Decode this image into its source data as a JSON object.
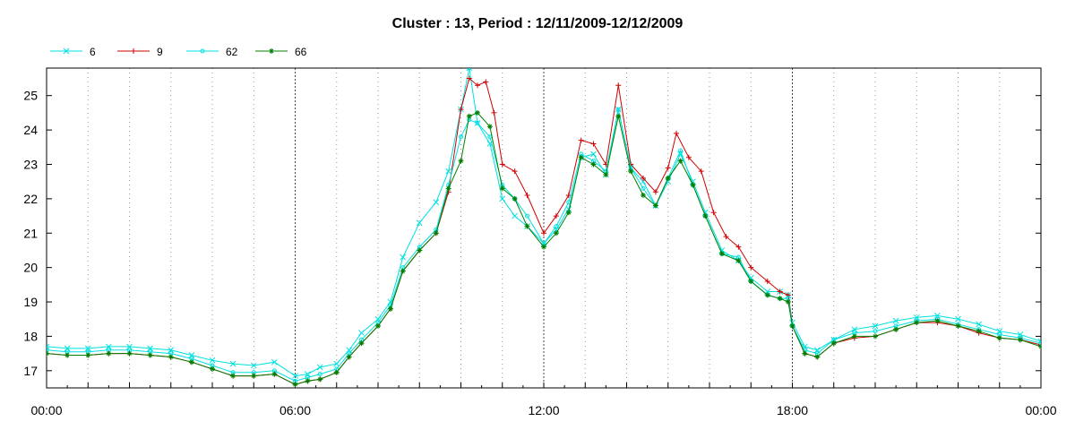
{
  "chart_data": {
    "type": "line",
    "title": "Cluster : 13, Period : 12/11/2009-12/12/2009",
    "xlabel": "",
    "ylabel": "",
    "x_unit": "hours",
    "xlim": [
      0,
      24
    ],
    "ylim": [
      16.5,
      25.8
    ],
    "x_ticks": [
      {
        "v": 0,
        "label": "00:00"
      },
      {
        "v": 6,
        "label": "06:00"
      },
      {
        "v": 12,
        "label": "12:00"
      },
      {
        "v": 18,
        "label": "18:00"
      },
      {
        "v": 24,
        "label": "00:00"
      }
    ],
    "y_ticks": [
      17,
      18,
      19,
      20,
      21,
      22,
      23,
      24,
      25
    ],
    "grid": "vertical dotted",
    "legend_position": "top-left",
    "series": [
      {
        "name": "6",
        "color": "#00e0e0",
        "marker": "x",
        "points": [
          [
            0,
            17.7
          ],
          [
            0.5,
            17.65
          ],
          [
            1,
            17.65
          ],
          [
            1.5,
            17.7
          ],
          [
            2,
            17.7
          ],
          [
            2.5,
            17.65
          ],
          [
            3,
            17.6
          ],
          [
            3.5,
            17.45
          ],
          [
            4,
            17.3
          ],
          [
            4.5,
            17.2
          ],
          [
            5,
            17.15
          ],
          [
            5.5,
            17.25
          ],
          [
            6,
            16.85
          ],
          [
            6.3,
            16.9
          ],
          [
            6.6,
            17.1
          ],
          [
            7,
            17.2
          ],
          [
            7.3,
            17.6
          ],
          [
            7.6,
            18.1
          ],
          [
            8,
            18.5
          ],
          [
            8.3,
            19.0
          ],
          [
            8.6,
            20.3
          ],
          [
            9,
            21.3
          ],
          [
            9.4,
            21.9
          ],
          [
            9.7,
            22.8
          ],
          [
            10,
            24.6
          ],
          [
            10.2,
            25.8
          ],
          [
            10.4,
            24.2
          ],
          [
            10.7,
            23.6
          ],
          [
            11,
            22.0
          ],
          [
            11.3,
            21.5
          ],
          [
            11.6,
            21.2
          ],
          [
            12,
            20.7
          ],
          [
            12.3,
            21.1
          ],
          [
            12.6,
            21.7
          ],
          [
            12.9,
            23.2
          ],
          [
            13.2,
            23.3
          ],
          [
            13.5,
            22.7
          ],
          [
            13.8,
            24.6
          ],
          [
            14.1,
            22.9
          ],
          [
            14.4,
            22.5
          ],
          [
            14.7,
            21.8
          ],
          [
            15,
            22.5
          ],
          [
            15.3,
            23.3
          ],
          [
            15.6,
            22.5
          ],
          [
            15.9,
            21.6
          ],
          [
            16.3,
            20.5
          ],
          [
            16.7,
            20.2
          ],
          [
            17,
            19.7
          ],
          [
            17.4,
            19.3
          ],
          [
            17.7,
            19.3
          ],
          [
            17.9,
            19.2
          ],
          [
            18,
            18.4
          ],
          [
            18.3,
            17.7
          ],
          [
            18.6,
            17.6
          ],
          [
            19,
            17.9
          ],
          [
            19.5,
            18.2
          ],
          [
            20,
            18.3
          ],
          [
            20.5,
            18.45
          ],
          [
            21,
            18.55
          ],
          [
            21.5,
            18.6
          ],
          [
            22,
            18.5
          ],
          [
            22.5,
            18.35
          ],
          [
            23,
            18.15
          ],
          [
            23.5,
            18.05
          ],
          [
            24,
            17.85
          ]
        ]
      },
      {
        "name": "9",
        "color": "#d00000",
        "marker": "+",
        "points": [
          [
            0,
            17.5
          ],
          [
            0.5,
            17.45
          ],
          [
            1,
            17.45
          ],
          [
            1.5,
            17.5
          ],
          [
            2,
            17.5
          ],
          [
            2.5,
            17.45
          ],
          [
            3,
            17.4
          ],
          [
            3.5,
            17.25
          ],
          [
            4,
            17.05
          ],
          [
            4.5,
            16.85
          ],
          [
            5,
            16.85
          ],
          [
            5.5,
            16.9
          ],
          [
            6,
            16.6
          ],
          [
            6.3,
            16.7
          ],
          [
            6.6,
            16.75
          ],
          [
            7,
            16.95
          ],
          [
            7.3,
            17.4
          ],
          [
            7.6,
            17.8
          ],
          [
            8,
            18.3
          ],
          [
            8.3,
            18.8
          ],
          [
            8.6,
            19.9
          ],
          [
            9,
            20.5
          ],
          [
            9.4,
            21.0
          ],
          [
            9.7,
            22.2
          ],
          [
            10,
            24.6
          ],
          [
            10.2,
            25.5
          ],
          [
            10.4,
            25.3
          ],
          [
            10.6,
            25.4
          ],
          [
            10.8,
            24.5
          ],
          [
            11,
            23.0
          ],
          [
            11.3,
            22.8
          ],
          [
            11.6,
            22.1
          ],
          [
            12,
            21.0
          ],
          [
            12.3,
            21.5
          ],
          [
            12.6,
            22.1
          ],
          [
            12.9,
            23.7
          ],
          [
            13.2,
            23.6
          ],
          [
            13.5,
            23.0
          ],
          [
            13.8,
            25.3
          ],
          [
            14.1,
            23.0
          ],
          [
            14.4,
            22.6
          ],
          [
            14.7,
            22.2
          ],
          [
            15,
            22.9
          ],
          [
            15.2,
            23.9
          ],
          [
            15.5,
            23.2
          ],
          [
            15.8,
            22.8
          ],
          [
            16.1,
            21.6
          ],
          [
            16.4,
            20.9
          ],
          [
            16.7,
            20.6
          ],
          [
            17,
            20.0
          ],
          [
            17.4,
            19.6
          ],
          [
            17.7,
            19.3
          ],
          [
            17.9,
            19.2
          ],
          [
            18,
            18.3
          ],
          [
            18.3,
            17.5
          ],
          [
            18.6,
            17.4
          ],
          [
            19,
            17.8
          ],
          [
            19.5,
            17.95
          ],
          [
            20,
            18.0
          ],
          [
            20.5,
            18.2
          ],
          [
            21,
            18.4
          ],
          [
            21.5,
            18.4
          ],
          [
            22,
            18.3
          ],
          [
            22.5,
            18.1
          ],
          [
            23,
            17.95
          ],
          [
            23.5,
            17.9
          ],
          [
            24,
            17.75
          ]
        ]
      },
      {
        "name": "62",
        "color": "#00e0e0",
        "marker": "o",
        "points": [
          [
            0,
            17.6
          ],
          [
            0.5,
            17.55
          ],
          [
            1,
            17.55
          ],
          [
            1.5,
            17.6
          ],
          [
            2,
            17.6
          ],
          [
            2.5,
            17.55
          ],
          [
            3,
            17.5
          ],
          [
            3.5,
            17.35
          ],
          [
            4,
            17.15
          ],
          [
            4.5,
            16.95
          ],
          [
            5,
            16.95
          ],
          [
            5.5,
            17.0
          ],
          [
            6,
            16.7
          ],
          [
            6.3,
            16.8
          ],
          [
            6.6,
            16.9
          ],
          [
            7,
            17.05
          ],
          [
            7.3,
            17.5
          ],
          [
            7.6,
            17.9
          ],
          [
            8,
            18.4
          ],
          [
            8.3,
            18.9
          ],
          [
            8.6,
            20.0
          ],
          [
            9,
            20.6
          ],
          [
            9.4,
            21.1
          ],
          [
            9.7,
            22.4
          ],
          [
            10,
            23.8
          ],
          [
            10.2,
            24.3
          ],
          [
            10.4,
            24.2
          ],
          [
            10.7,
            23.8
          ],
          [
            11,
            22.4
          ],
          [
            11.3,
            22.0
          ],
          [
            11.6,
            21.5
          ],
          [
            12,
            20.7
          ],
          [
            12.3,
            21.2
          ],
          [
            12.6,
            21.9
          ],
          [
            12.9,
            23.3
          ],
          [
            13.2,
            23.1
          ],
          [
            13.5,
            22.8
          ],
          [
            13.8,
            24.6
          ],
          [
            14.1,
            22.9
          ],
          [
            14.4,
            22.3
          ],
          [
            14.7,
            21.8
          ],
          [
            15,
            22.6
          ],
          [
            15.3,
            23.4
          ],
          [
            15.6,
            22.4
          ],
          [
            15.9,
            21.5
          ],
          [
            16.3,
            20.4
          ],
          [
            16.7,
            20.3
          ],
          [
            17,
            19.6
          ],
          [
            17.4,
            19.2
          ],
          [
            17.7,
            19.1
          ],
          [
            17.9,
            19.1
          ],
          [
            18,
            18.3
          ],
          [
            18.3,
            17.6
          ],
          [
            18.6,
            17.5
          ],
          [
            19,
            17.9
          ],
          [
            19.5,
            18.1
          ],
          [
            20,
            18.15
          ],
          [
            20.5,
            18.3
          ],
          [
            21,
            18.45
          ],
          [
            21.5,
            18.5
          ],
          [
            22,
            18.35
          ],
          [
            22.5,
            18.2
          ],
          [
            23,
            18.05
          ],
          [
            23.5,
            17.95
          ],
          [
            24,
            17.8
          ]
        ]
      },
      {
        "name": "66",
        "color": "#008000",
        "marker": "*",
        "points": [
          [
            0,
            17.5
          ],
          [
            0.5,
            17.45
          ],
          [
            1,
            17.45
          ],
          [
            1.5,
            17.5
          ],
          [
            2,
            17.5
          ],
          [
            2.5,
            17.45
          ],
          [
            3,
            17.4
          ],
          [
            3.5,
            17.25
          ],
          [
            4,
            17.05
          ],
          [
            4.5,
            16.85
          ],
          [
            5,
            16.85
          ],
          [
            5.5,
            16.9
          ],
          [
            6,
            16.6
          ],
          [
            6.3,
            16.7
          ],
          [
            6.6,
            16.75
          ],
          [
            7,
            16.95
          ],
          [
            7.3,
            17.4
          ],
          [
            7.6,
            17.8
          ],
          [
            8,
            18.3
          ],
          [
            8.3,
            18.8
          ],
          [
            8.6,
            19.9
          ],
          [
            9,
            20.5
          ],
          [
            9.4,
            21.0
          ],
          [
            9.7,
            22.3
          ],
          [
            10,
            23.1
          ],
          [
            10.2,
            24.4
          ],
          [
            10.4,
            24.5
          ],
          [
            10.7,
            24.1
          ],
          [
            11,
            22.3
          ],
          [
            11.3,
            22.0
          ],
          [
            11.6,
            21.2
          ],
          [
            12,
            20.6
          ],
          [
            12.3,
            21.0
          ],
          [
            12.6,
            21.6
          ],
          [
            12.9,
            23.2
          ],
          [
            13.2,
            23.0
          ],
          [
            13.5,
            22.7
          ],
          [
            13.8,
            24.4
          ],
          [
            14.1,
            22.8
          ],
          [
            14.4,
            22.1
          ],
          [
            14.7,
            21.8
          ],
          [
            15,
            22.6
          ],
          [
            15.3,
            23.1
          ],
          [
            15.6,
            22.4
          ],
          [
            15.9,
            21.5
          ],
          [
            16.3,
            20.4
          ],
          [
            16.7,
            20.2
          ],
          [
            17,
            19.6
          ],
          [
            17.4,
            19.2
          ],
          [
            17.7,
            19.1
          ],
          [
            17.9,
            19.0
          ],
          [
            18,
            18.3
          ],
          [
            18.3,
            17.5
          ],
          [
            18.6,
            17.4
          ],
          [
            19,
            17.8
          ],
          [
            19.5,
            18.0
          ],
          [
            20,
            18.0
          ],
          [
            20.5,
            18.2
          ],
          [
            21,
            18.4
          ],
          [
            21.5,
            18.45
          ],
          [
            22,
            18.3
          ],
          [
            22.5,
            18.15
          ],
          [
            23,
            17.95
          ],
          [
            23.5,
            17.9
          ],
          [
            24,
            17.7
          ]
        ]
      }
    ]
  }
}
